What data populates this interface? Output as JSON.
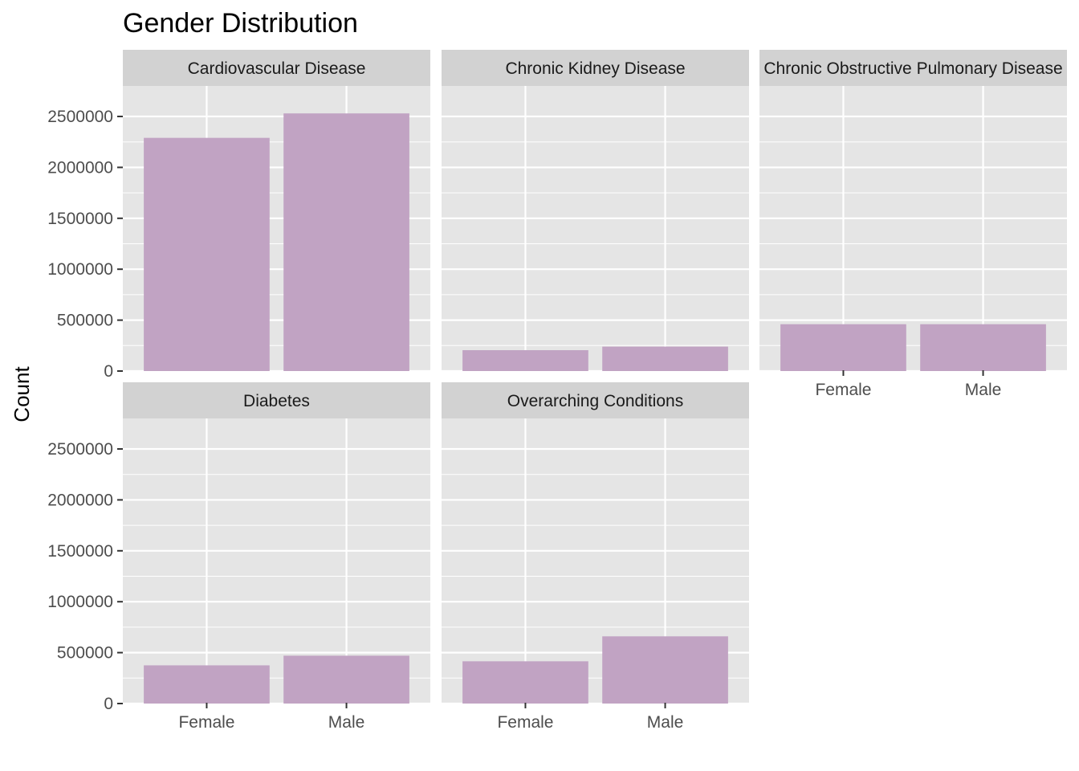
{
  "chart_data": {
    "type": "bar",
    "title": "Gender Distribution",
    "ylabel": "Count",
    "xlabel": "",
    "categories": [
      "Female",
      "Male"
    ],
    "ylim": [
      0,
      2650000
    ],
    "yticks": [
      0,
      500000,
      1000000,
      1500000,
      2000000,
      2500000
    ],
    "ytick_labels": [
      "0",
      "500000",
      "1000000",
      "1500000",
      "2000000",
      "2500000"
    ],
    "bar_color": "#c1a3c3",
    "panel_background": "#e5e5e5",
    "strip_background": "#d2d2d2",
    "grid": true,
    "facets": [
      {
        "label": "Cardiovascular Disease",
        "values": [
          2290000,
          2530000
        ]
      },
      {
        "label": "Chronic Kidney Disease",
        "values": [
          205000,
          240000
        ]
      },
      {
        "label": "Chronic Obstructive Pulmonary Disease",
        "values": [
          460000,
          460000
        ]
      },
      {
        "label": "Diabetes",
        "values": [
          375000,
          470000
        ]
      },
      {
        "label": "Overarching Conditions",
        "values": [
          415000,
          660000
        ]
      }
    ]
  }
}
